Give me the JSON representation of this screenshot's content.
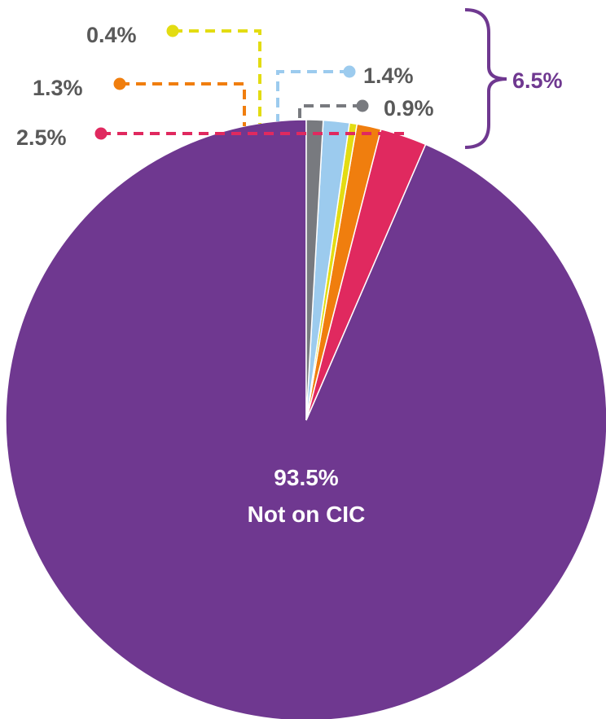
{
  "chart_data": {
    "type": "pie",
    "start_angle_deg": 0,
    "direction": "counterclockwise",
    "slices": [
      {
        "value": 93.5,
        "label": "93.5%",
        "name": "Not on CIC",
        "color": "#6F3890"
      },
      {
        "value": 2.5,
        "label": "2.5%",
        "color": "#E0295F"
      },
      {
        "value": 1.3,
        "label": "1.3%",
        "color": "#F07E0E"
      },
      {
        "value": 0.4,
        "label": "0.4%",
        "color": "#E3DC12"
      },
      {
        "value": 1.4,
        "label": "1.4%",
        "color": "#9CCBEE"
      },
      {
        "value": 0.9,
        "label": "0.9%",
        "color": "#787A7F"
      }
    ],
    "group_total": {
      "label": "6.5%",
      "color": "#6F3890"
    }
  }
}
